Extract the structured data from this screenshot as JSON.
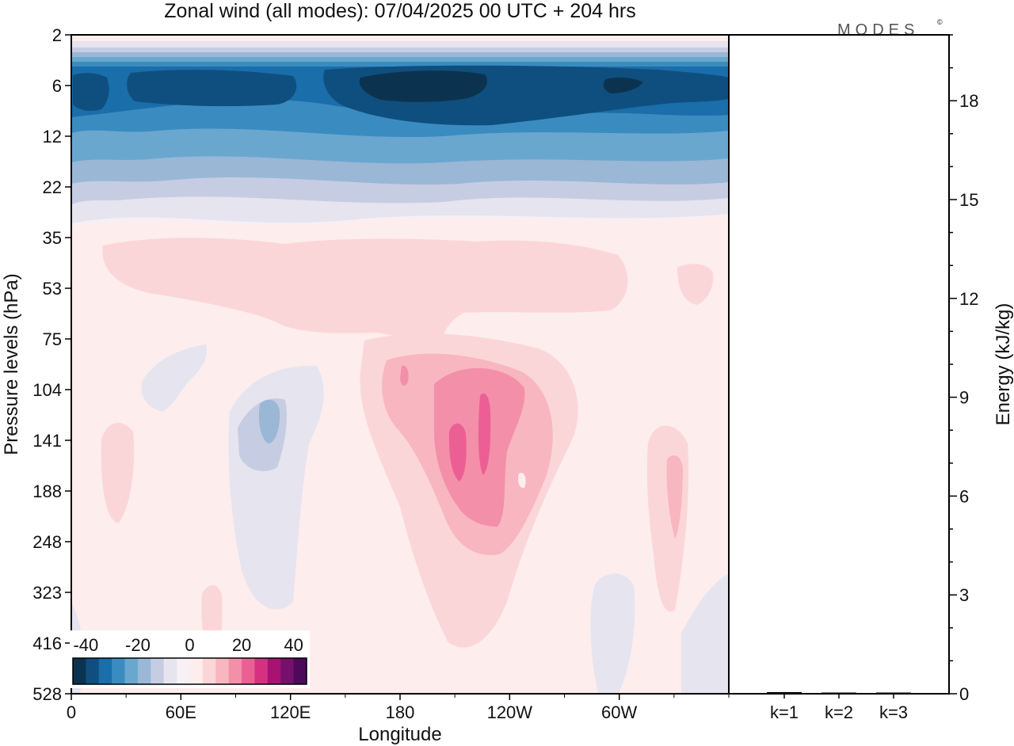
{
  "chart_data": {
    "type": "heatmap",
    "title": "Zonal wind (all modes):  07/04/2025  00 UTC  + 204 hrs",
    "xlabel": "Longitude",
    "ylabel": "Pressure levels (hPa)",
    "x_ticks": [
      "0",
      "60E",
      "120E",
      "180",
      "120W",
      "60W"
    ],
    "y_ticks": [
      "2",
      "6",
      "12",
      "22",
      "35",
      "53",
      "75",
      "104",
      "141",
      "188",
      "248",
      "323",
      "416",
      "528"
    ],
    "y_axis_inverted": true,
    "colorbar": {
      "ticks": [
        "-40",
        "-20",
        "0",
        "20",
        "40"
      ],
      "range": [
        -45,
        45
      ],
      "colors": [
        "#0b3350",
        "#0f4f7f",
        "#1a6ea9",
        "#3a8cc0",
        "#6aa7cf",
        "#9ab7d6",
        "#c6cde2",
        "#e6e4ef",
        "#f7f1f6",
        "#fdeded",
        "#fbd6d8",
        "#f8b6c0",
        "#f38fa9",
        "#ec5f94",
        "#d63080",
        "#a71273",
        "#76106a",
        "#4d0a5b"
      ]
    },
    "field_description_levels_hPa": {
      "2": "weak positive",
      "6": "strong easterly (about -40 to -45)",
      "12": "easterly (about -30)",
      "22": "weak easterly (about -10)",
      "35": "weak westerly",
      "53": "weak westerly (about 5-10)",
      "75": "weak westerly",
      "104": "westerly maximum near 170W (about 20-25), weak easterly near 110E",
      "141": "westerly jet core near 160W (about 25-30)",
      "188": "westerly near 160W (about 20)",
      "248": "weak westerly",
      "323": "near zero",
      "416": "near zero",
      "528": "near zero"
    },
    "energy_panel": {
      "ylabel": "Energy (kJ/kg)",
      "y_ticks": [
        "0",
        "3",
        "6",
        "9",
        "12",
        "15",
        "18"
      ],
      "ylim": [
        0,
        20
      ],
      "categories": [
        "k=1",
        "k=2",
        "k=3"
      ],
      "values": [
        0.05,
        0.03,
        0.03
      ]
    }
  },
  "brand": "MODES",
  "brand_mark": "©"
}
